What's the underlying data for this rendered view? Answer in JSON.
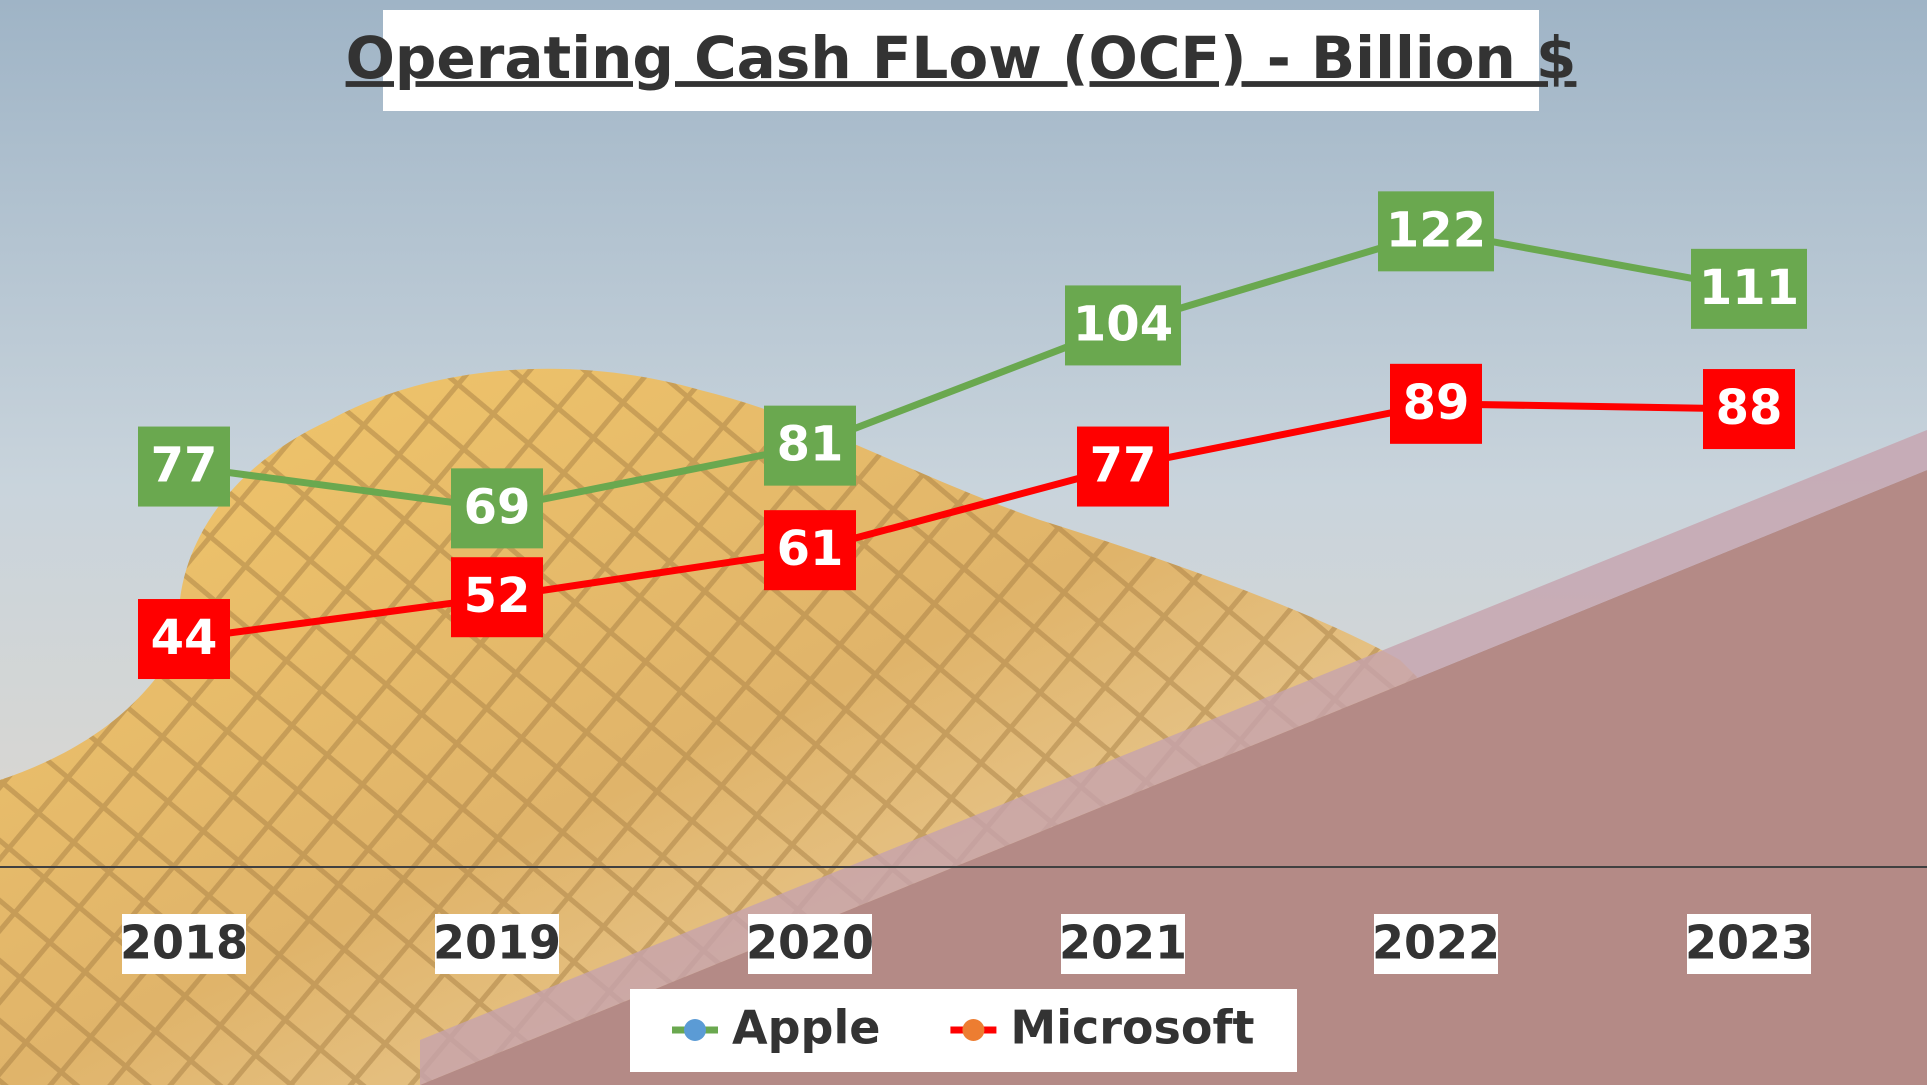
{
  "chart_data": {
    "type": "line",
    "title": "Operating Cash FLow (OCF) - Billion $",
    "x": [
      2018,
      2019,
      2020,
      2021,
      2022,
      2023
    ],
    "series": [
      {
        "name": "Apple",
        "color": "#6aa84f",
        "marker_color": "#5b9bd5",
        "values": [
          77,
          69,
          81,
          104,
          122,
          111
        ]
      },
      {
        "name": "Microsoft",
        "color": "#ff0000",
        "marker_color": "#ed7d31",
        "values": [
          44,
          52,
          61,
          77,
          89,
          88
        ]
      }
    ],
    "ylim": [
      0,
      150
    ]
  }
}
